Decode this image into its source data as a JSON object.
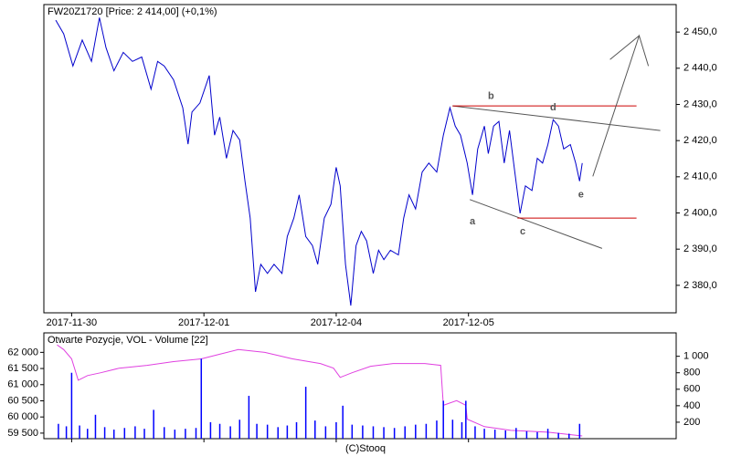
{
  "chart_data": [
    {
      "type": "line",
      "title": "FW20Z1720 [Price: 2 414,00] (+0,1%)",
      "xlim": [
        -0.21,
        4.57
      ],
      "xticks": [
        {
          "value": 0,
          "label": "2017-11-30"
        },
        {
          "value": 1,
          "label": "2017-12-01"
        },
        {
          "value": 2,
          "label": "2017-12-04"
        },
        {
          "value": 3,
          "label": "2017-12-05"
        }
      ],
      "ylim": [
        2372.4,
        2457.6
      ],
      "yticks": [
        {
          "value": 2380,
          "label": "2 380,0"
        },
        {
          "value": 2390,
          "label": "2 390,0"
        },
        {
          "value": 2400,
          "label": "2 400,0"
        },
        {
          "value": 2410,
          "label": "2 410,0"
        },
        {
          "value": 2420,
          "label": "2 420,0"
        },
        {
          "value": 2430,
          "label": "2 430,0"
        },
        {
          "value": 2440,
          "label": "2 440,0"
        },
        {
          "value": 2450,
          "label": "2 450,0"
        }
      ],
      "series": [
        {
          "color": "#0000cc",
          "x": [
            -0.12,
            -0.06,
            0.01,
            0.08,
            0.15,
            0.21,
            0.26,
            0.32,
            0.39,
            0.46,
            0.53,
            0.6,
            0.65,
            0.7,
            0.77,
            0.84,
            0.88,
            0.91,
            0.97,
            1.04,
            1.08,
            1.12,
            1.17,
            1.22,
            1.27,
            1.31,
            1.35,
            1.39,
            1.43,
            1.48,
            1.53,
            1.59,
            1.63,
            1.68,
            1.72,
            1.77,
            1.82,
            1.86,
            1.91,
            1.96,
            2.0,
            2.03,
            2.07,
            2.11,
            2.15,
            2.19,
            2.23,
            2.28,
            2.32,
            2.36,
            2.41,
            2.47,
            2.51,
            2.55,
            2.6,
            2.65,
            2.7,
            2.76,
            2.81,
            2.86,
            2.9,
            2.94,
            2.99,
            3.03,
            3.07,
            3.12,
            3.15,
            3.19,
            3.23,
            3.27,
            3.31,
            3.35,
            3.39,
            3.43,
            3.48,
            3.52,
            3.56,
            3.6,
            3.64,
            3.68,
            3.72,
            3.77,
            3.81,
            3.84,
            3.86
          ],
          "values": [
            2453.3,
            2449.5,
            2440.6,
            2447.8,
            2441.9,
            2454,
            2445.7,
            2439.3,
            2444.4,
            2441.9,
            2443.1,
            2434.2,
            2441.9,
            2440.6,
            2436.8,
            2429.1,
            2419,
            2427.9,
            2430.4,
            2438,
            2421.5,
            2426.5,
            2415.1,
            2422.8,
            2420.2,
            2408.8,
            2398.6,
            2378.2,
            2385.8,
            2383.3,
            2385.8,
            2383.3,
            2393.5,
            2398.6,
            2405,
            2393.5,
            2391,
            2385.8,
            2398.6,
            2402.4,
            2412.6,
            2407.5,
            2385.8,
            2374.4,
            2391,
            2394.9,
            2392.3,
            2383.3,
            2389.7,
            2387.1,
            2389.7,
            2388.4,
            2398.6,
            2405,
            2401.1,
            2411.3,
            2413.8,
            2411.3,
            2421.5,
            2429.1,
            2424,
            2421.5,
            2413.8,
            2405,
            2417.7,
            2424,
            2416.4,
            2424,
            2425.3,
            2413.8,
            2422.8,
            2411.3,
            2399.9,
            2407.5,
            2406.2,
            2415.1,
            2413.8,
            2418.9,
            2425.8,
            2424,
            2417.7,
            2418.9,
            2413.8,
            2408.8,
            2413.8
          ]
        }
      ],
      "shapes": [
        {
          "color": "#555555",
          "x": [
            2.88,
            4.45
          ],
          "y": [
            2429.6,
            2422.8
          ]
        },
        {
          "color": "#555555",
          "x": [
            3.01,
            4.01
          ],
          "y": [
            2403.7,
            2390.2
          ]
        },
        {
          "color": "#cc0000",
          "x": [
            2.88,
            4.27
          ],
          "y": [
            2429.6,
            2429.6
          ]
        },
        {
          "color": "#cc0000",
          "x": [
            3.37,
            4.27
          ],
          "y": [
            2398.6,
            2398.6
          ]
        },
        {
          "color": "#555555",
          "x": [
            3.94,
            4.29,
            4.36
          ],
          "y": [
            2410.1,
            2449,
            2440.6
          ]
        },
        {
          "color": "#555555",
          "x": [
            4.07,
            4.29
          ],
          "y": [
            2442.4,
            2449
          ]
        }
      ],
      "annotations": [
        {
          "text": "b",
          "x": 3.17,
          "y": 2432.2
        },
        {
          "text": "d",
          "x": 3.64,
          "y": 2429.1
        },
        {
          "text": "a",
          "x": 3.03,
          "y": 2397.6
        },
        {
          "text": "c",
          "x": 3.41,
          "y": 2394.8
        },
        {
          "text": "e",
          "x": 3.85,
          "y": 2405
        }
      ]
    },
    {
      "type": "combo",
      "title": "Otwarte Pozycje, VOL - Volume [22]",
      "xlim": [
        -0.21,
        4.57
      ],
      "ylim": [
        59328,
        62603
      ],
      "yticks": [
        {
          "value": 59500,
          "label": "59 500"
        },
        {
          "value": 60000,
          "label": "60 000"
        },
        {
          "value": 60500,
          "label": "60 500"
        },
        {
          "value": 61000,
          "label": "61 000"
        },
        {
          "value": 61500,
          "label": "61 500"
        },
        {
          "value": 62000,
          "label": "62 000"
        }
      ],
      "y2lim": [
        0,
        1284
      ],
      "y2ticks": [
        200,
        400,
        600,
        800,
        {
          "value": 1000,
          "label": "1 000"
        }
      ],
      "series": [
        {
          "type": "line",
          "color": "#e040e0",
          "x": [
            -0.11,
            -0.06,
            0,
            0.05,
            0.12,
            0.22,
            0.36,
            0.57,
            0.77,
            0.98,
            1.12,
            1.26,
            1.46,
            1.67,
            1.88,
            1.98,
            2.03,
            2.12,
            2.26,
            2.43,
            2.67,
            2.79,
            2.81,
            2.91,
            2.98,
            2.99,
            3.12,
            3.32,
            3.6,
            3.86
          ],
          "values": [
            62230,
            62086,
            61799,
            61138,
            61282,
            61368,
            61511,
            61598,
            61713,
            61799,
            61943,
            62086,
            62000,
            61799,
            61655,
            61511,
            61224,
            61368,
            61569,
            61655,
            61655,
            61598,
            60362,
            60506,
            60362,
            59931,
            59701,
            59586,
            59529,
            59414
          ]
        },
        {
          "type": "bar",
          "axis": "y2",
          "color": "#0000ff",
          "x": [
            -0.1,
            -0.04,
            0,
            0.06,
            0.12,
            0.18,
            0.25,
            0.32,
            0.4,
            0.48,
            0.55,
            0.62,
            0.7,
            0.78,
            0.86,
            0.94,
            0.98,
            1.05,
            1.12,
            1.2,
            1.27,
            1.34,
            1.4,
            1.48,
            1.56,
            1.63,
            1.7,
            1.77,
            1.84,
            1.92,
            2.0,
            2.05,
            2.12,
            2.2,
            2.28,
            2.36,
            2.44,
            2.52,
            2.6,
            2.68,
            2.76,
            2.81,
            2.88,
            2.95,
            2.98,
            3.05,
            3.12,
            3.2,
            3.28,
            3.36,
            3.44,
            3.52,
            3.6,
            3.68,
            3.76,
            3.84
          ],
          "values": [
            180,
            150,
            800,
            160,
            120,
            290,
            140,
            110,
            130,
            150,
            120,
            350,
            140,
            110,
            120,
            130,
            970,
            200,
            180,
            150,
            230,
            520,
            180,
            170,
            140,
            160,
            200,
            630,
            220,
            150,
            200,
            400,
            170,
            160,
            150,
            140,
            130,
            150,
            170,
            180,
            220,
            460,
            230,
            200,
            460,
            150,
            120,
            110,
            100,
            130,
            90,
            80,
            120,
            70,
            60,
            180
          ]
        }
      ]
    }
  ],
  "footer": "(C)Stooq"
}
